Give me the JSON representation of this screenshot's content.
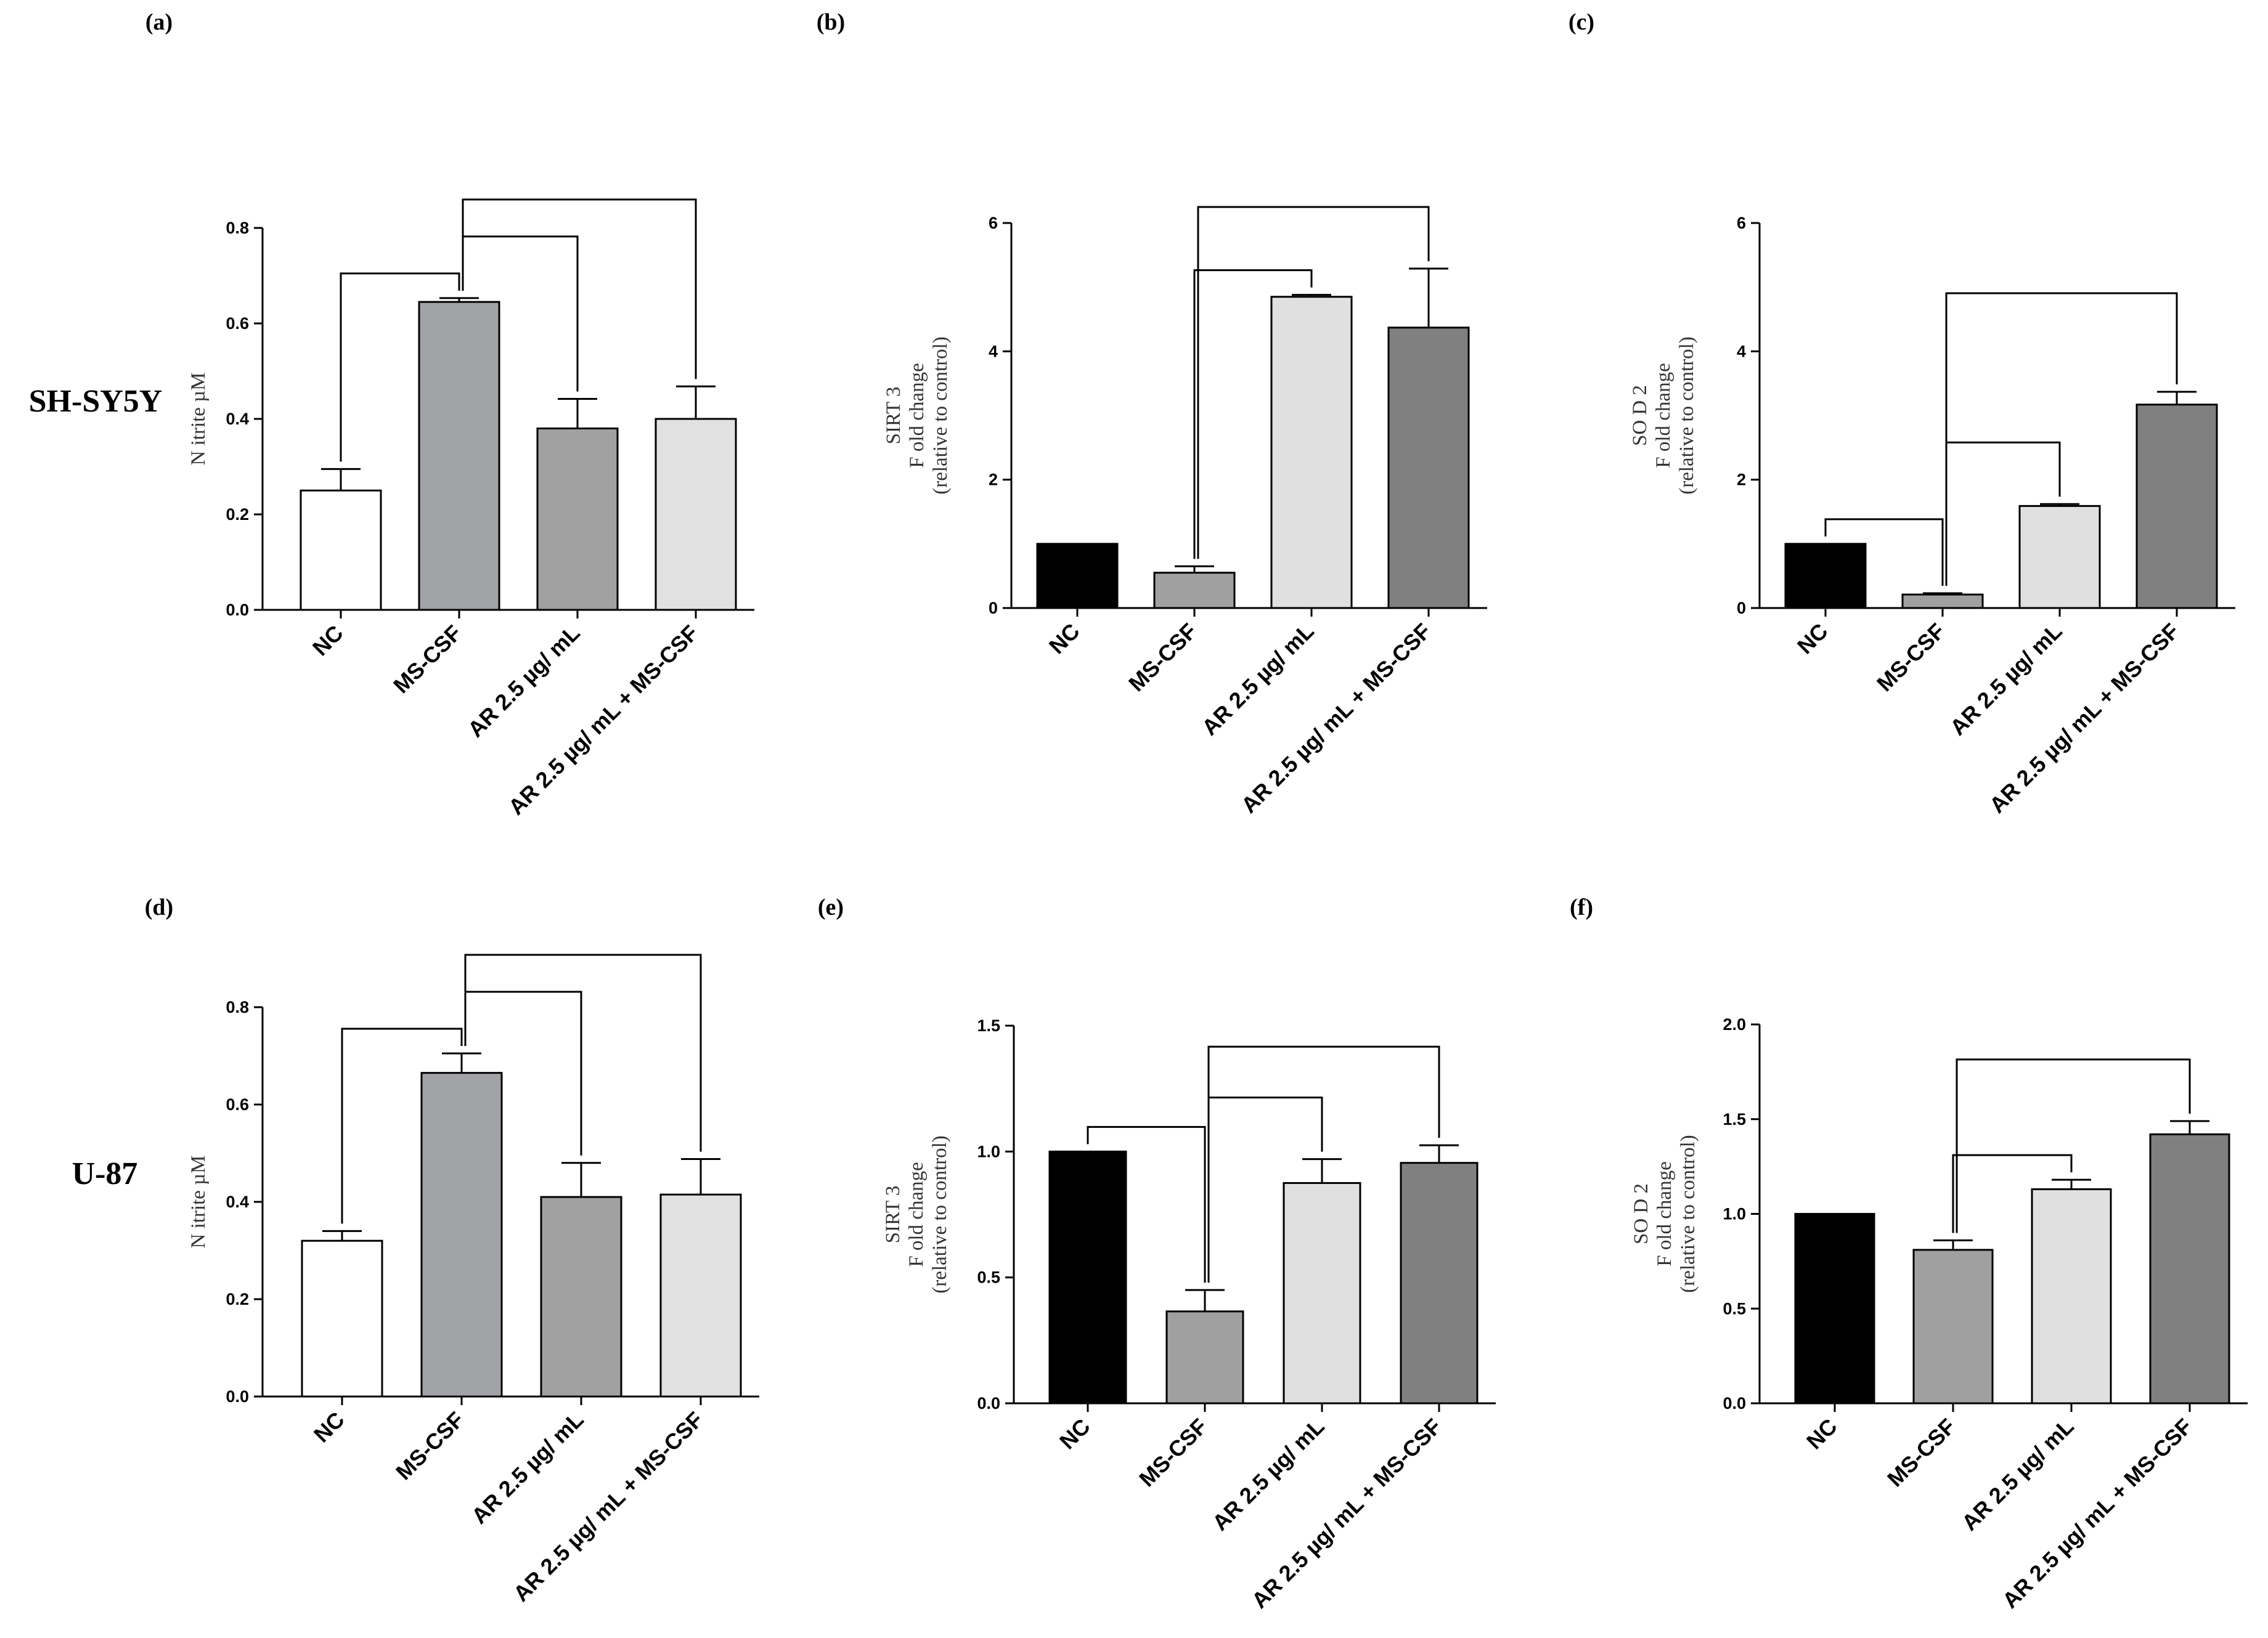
{
  "row_labels": [
    "SH-SY5Y",
    "U-87"
  ],
  "chart_data": [
    {
      "panel": "(a)",
      "type": "bar",
      "categories": [
        "NC",
        "MS-CSF",
        "AR 2.5 µg/ mL",
        "AR 2.5 µg/ mL + MS-CSF"
      ],
      "values": [
        0.25,
        0.645,
        0.38,
        0.4
      ],
      "errors": [
        0.045,
        0.008,
        0.062,
        0.068
      ],
      "colors": [
        "#ffffff",
        "#a2a3a6",
        "#a1a1a1",
        "#e1e1e1"
      ],
      "ylabel_lines": [
        "N itrite µM"
      ],
      "ylim": [
        0,
        0.8
      ],
      "yticks": [
        "0.0",
        "0.2",
        "0.4",
        "0.6",
        "0.8"
      ],
      "brackets": [
        [
          0,
          1
        ],
        [
          1,
          2
        ],
        [
          1,
          3
        ]
      ]
    },
    {
      "panel": "(b)",
      "type": "bar",
      "categories": [
        "NC",
        "MS-CSF",
        "AR 2.5 µg/ mL",
        "AR 2.5 µg/ mL + MS-CSF"
      ],
      "values": [
        1.0,
        0.55,
        4.85,
        4.37
      ],
      "errors": [
        0,
        0.1,
        0.03,
        0.92
      ],
      "colors": [
        "#000000",
        "#a0a0a0",
        "#e0e0e0",
        "#808080"
      ],
      "ylabel_lines": [
        "SIRT 3",
        "F old change",
        "(relative to control)"
      ],
      "ylim": [
        0,
        6
      ],
      "yticks": [
        "0",
        "2",
        "4",
        "6"
      ],
      "brackets": [
        [
          1,
          2
        ],
        [
          1,
          3
        ]
      ]
    },
    {
      "panel": "(c)",
      "type": "bar",
      "categories": [
        "NC",
        "MS-CSF",
        "AR 2.5 µg/ mL",
        "AR 2.5 µg/ mL + MS-CSF"
      ],
      "values": [
        1.0,
        0.21,
        1.59,
        3.17
      ],
      "errors": [
        0,
        0.02,
        0.03,
        0.2
      ],
      "colors": [
        "#000000",
        "#a0a0a0",
        "#e0e0e0",
        "#808080"
      ],
      "ylabel_lines": [
        "SO D 2",
        "F old change",
        "(relative to control)"
      ],
      "ylim": [
        0,
        6
      ],
      "yticks": [
        "0",
        "2",
        "4",
        "6"
      ],
      "brackets": [
        [
          0,
          1
        ],
        [
          1,
          2
        ],
        [
          1,
          3
        ]
      ]
    },
    {
      "panel": "(d)",
      "type": "bar",
      "categories": [
        "NC",
        "MS-CSF",
        "AR 2.5 µg/ mL",
        "AR 2.5 µg/ mL + MS-CSF"
      ],
      "values": [
        0.32,
        0.665,
        0.41,
        0.415
      ],
      "errors": [
        0.02,
        0.04,
        0.07,
        0.073
      ],
      "colors": [
        "#ffffff",
        "#a2a3a6",
        "#a1a1a1",
        "#e1e1e1"
      ],
      "ylabel_lines": [
        "N itrite µM"
      ],
      "ylim": [
        0,
        0.8
      ],
      "yticks": [
        "0.0",
        "0.2",
        "0.4",
        "0.6",
        "0.8"
      ],
      "brackets": [
        [
          0,
          1
        ],
        [
          1,
          2
        ],
        [
          1,
          3
        ]
      ]
    },
    {
      "panel": "(e)",
      "type": "bar",
      "categories": [
        "NC",
        "MS-CSF",
        "AR 2.5 µg/ mL",
        "AR 2.5 µg/ mL + MS-CSF"
      ],
      "values": [
        1.0,
        0.365,
        0.875,
        0.955
      ],
      "errors": [
        0,
        0.085,
        0.095,
        0.07
      ],
      "colors": [
        "#000000",
        "#a0a0a0",
        "#e0e0e0",
        "#808080"
      ],
      "ylabel_lines": [
        "SIRT 3",
        "F old change",
        "(relative to control)"
      ],
      "ylim": [
        0,
        1.5
      ],
      "yticks": [
        "0.0",
        "0.5",
        "1.0",
        "1.5"
      ],
      "brackets": [
        [
          0,
          1
        ],
        [
          1,
          2
        ],
        [
          1,
          3
        ]
      ]
    },
    {
      "panel": "(f)",
      "type": "bar",
      "categories": [
        "NC",
        "MS-CSF",
        "AR 2.5 µg/ mL",
        "AR 2.5 µg/ mL + MS-CSF"
      ],
      "values": [
        1.0,
        0.81,
        1.13,
        1.42
      ],
      "errors": [
        0,
        0.05,
        0.05,
        0.07
      ],
      "colors": [
        "#000000",
        "#a0a0a0",
        "#e0e0e0",
        "#808080"
      ],
      "ylabel_lines": [
        "SO D 2",
        "F old change",
        "(relative to control)"
      ],
      "ylim": [
        0,
        2.0
      ],
      "yticks": [
        "0.0",
        "0.5",
        "1.0",
        "1.5",
        "2.0"
      ],
      "brackets": [
        [
          1,
          2
        ],
        [
          1,
          3
        ]
      ]
    }
  ]
}
